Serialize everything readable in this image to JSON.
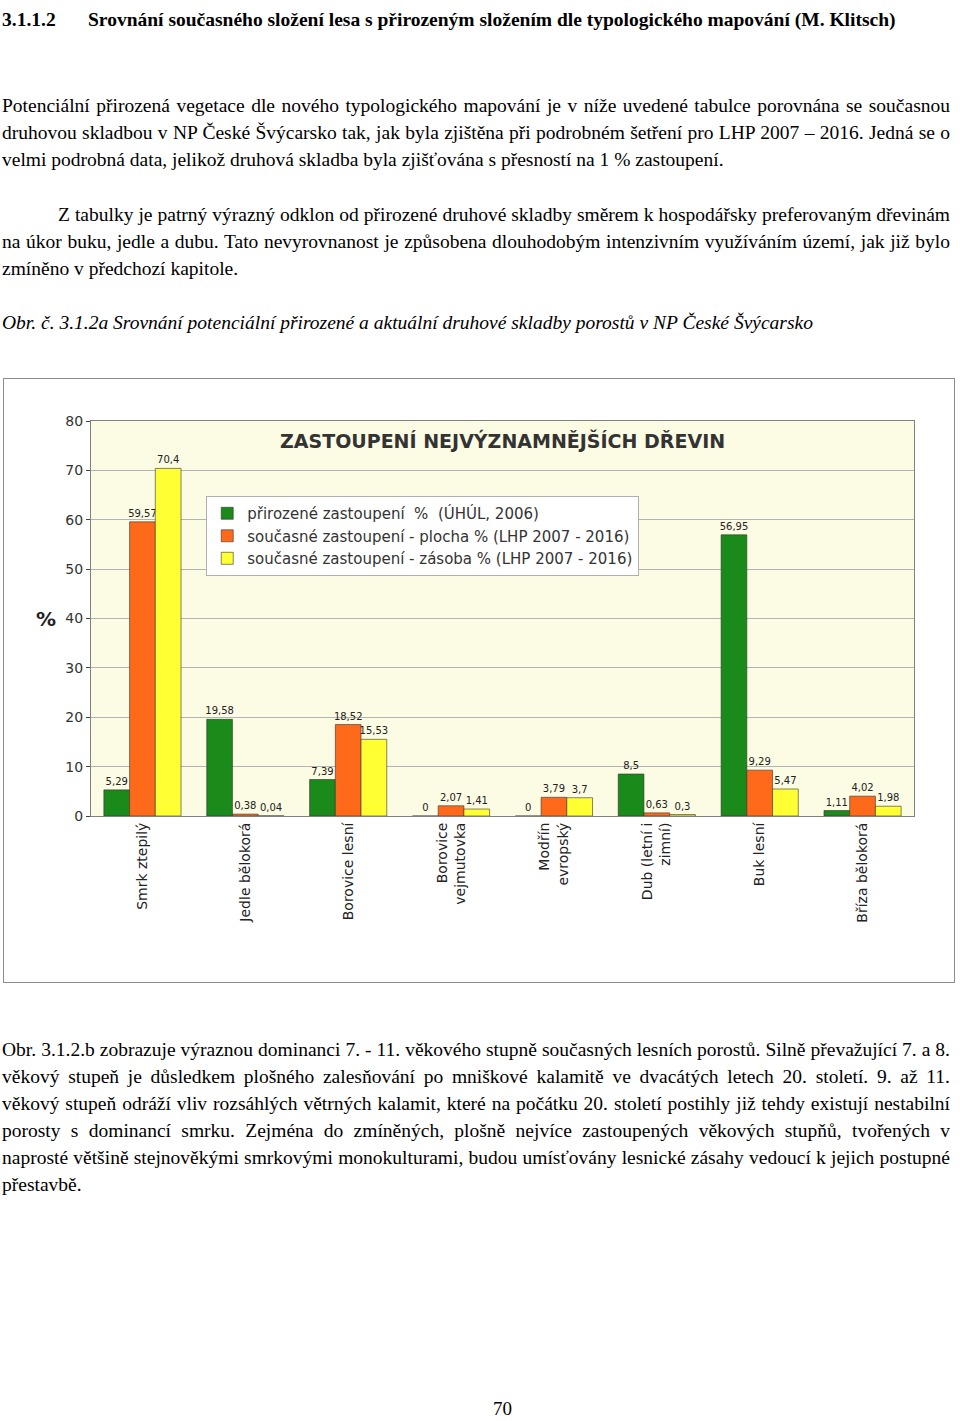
{
  "heading": {
    "number": "3.1.1.2",
    "text": "Srovnání současného složení lesa s přirozeným složením dle typologického mapování (M. Klitsch)"
  },
  "paragraphs": [
    "Potenciální přirozená vegetace dle nového typologického mapování je v níže uvedené tabulce porovnána se současnou druhovou skladbou v NP České Švýcarsko tak, jak byla zjištěna při podrobném šetření pro LHP 2007 – 2016. Jedná se o velmi podrobná data, jelikož druhová skladba byla zjišťována s přesností na 1 % zastoupení.",
    "Z tabulky je patrný výrazný odklon od přirozené druhové skladby směrem k hospodářsky preferovaným dřevinám na úkor buku, jedle a dubu. Tato nevyrovnanost je způsobena dlouhodobým intenzivním využíváním území, jak již bylo zmíněno v předchozí kapitole."
  ],
  "figure_caption": "Obr. č. 3.1.2a Srovnání potenciální přirozené a aktuální druhové skladby porostů v NP České Švýcarsko",
  "chart_data": {
    "type": "bar",
    "title": "ZASTOUPENÍ NEJVÝZNAMNĚJŠÍCH DŘEVIN",
    "y_label": "%",
    "categories": [
      "Smrk ztepilý",
      "Jedle bělokorá",
      "Borovice lesní",
      "Borovice vejmutovka",
      "Modřín evropský",
      "Dub (letní i zimní)",
      "Buk lesní",
      "Bříza bělokorá"
    ],
    "series": [
      {
        "name": "přirozené zastoupení  %  (ÚHÚL, 2006)",
        "color": "#1a8a1a",
        "values": [
          5.29,
          19.58,
          7.39,
          0,
          0,
          8.5,
          56.95,
          1.11
        ],
        "value_labels": [
          "5,29",
          "19,58",
          "7,39",
          "0",
          "0",
          "8,5",
          "56,95",
          "1,11"
        ]
      },
      {
        "name": "současné zastoupení - plocha % (LHP 2007 - 2016)",
        "color": "#ff6a1a",
        "values": [
          59.57,
          0.38,
          18.52,
          2.07,
          3.79,
          0.63,
          9.29,
          4.02
        ],
        "value_labels": [
          "59,57",
          "0,38",
          "18,52",
          "2,07",
          "3,79",
          "0,63",
          "9,29",
          "4,02"
        ]
      },
      {
        "name": "současné zastoupení - zásoba % (LHP 2007 - 2016)",
        "color": "#ffff33",
        "values": [
          70.4,
          0.04,
          15.53,
          1.41,
          3.7,
          0.3,
          5.47,
          1.98
        ],
        "value_labels": [
          "70,4",
          "0,04",
          "15,53",
          "1,41",
          "3,7",
          "0,3",
          "5,47",
          "1,98"
        ]
      }
    ],
    "ylim": [
      0,
      80
    ],
    "yticks": [
      0,
      10,
      20,
      30,
      40,
      50,
      60,
      70,
      80
    ],
    "grid": true,
    "legend": "left",
    "data_labels": true
  },
  "closing_paragraph": "Obr. 3.1.2.b zobrazuje výraznou dominanci 7. - 11. věkového stupně současných lesních porostů. Silně převažující 7. a 8. věkový stupeň je důsledkem plošného zalesňování po mniškové kalamitě ve dvacátých letech 20. století. 9. až 11. věkový stupeň odráží vliv rozsáhlých větrných kalamit, které na počátku 20. století postihly již tehdy existují nestabilní porosty s dominancí smrku. Zejména do zmíněných, plošně nejvíce zastoupených věkových stupňů, tvořených v naprosté většině stejnověkými smrkovými monokulturami, budou umísťovány lesnické zásahy vedoucí k jejich postupné přestavbě.",
  "page_number": "70"
}
